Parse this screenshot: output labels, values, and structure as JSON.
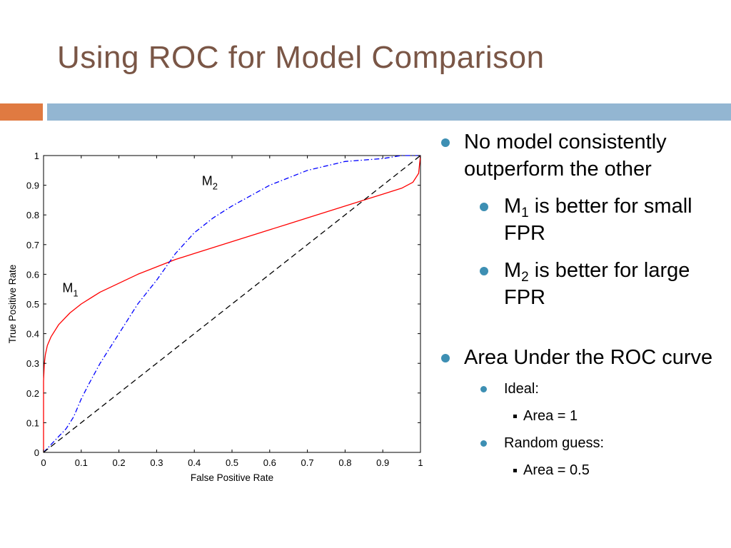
{
  "slide": {
    "title": "Using ROC for Model Comparison",
    "colors": {
      "title": "#7a5646",
      "orange_band": "#e07a41",
      "blue_band": "#93b6d2",
      "bullet": "#3d8fb3"
    }
  },
  "bullets": {
    "b1": "No model consistently outperform the other",
    "b1a_pre": "M",
    "b1a_sub": "1",
    "b1a_post": " is better for small FPR",
    "b1b_pre": "M",
    "b1b_sub": "2",
    "b1b_post": " is better for large FPR",
    "b2": "Area Under the ROC curve",
    "b2a": "Ideal:",
    "b2a1": "Area = 1",
    "b2b": "Random guess:",
    "b2b1": "Area = 0.5"
  },
  "chart_data": {
    "type": "line",
    "xlabel": "False Positive Rate",
    "ylabel": "True Positive Rate",
    "xlim": [
      0,
      1
    ],
    "ylim": [
      0,
      1
    ],
    "xticks": [
      "0",
      "0.1",
      "0.2",
      "0.3",
      "0.4",
      "0.5",
      "0.6",
      "0.7",
      "0.8",
      "0.9",
      "1"
    ],
    "yticks": [
      "0",
      "0.1",
      "0.2",
      "0.3",
      "0.4",
      "0.5",
      "0.6",
      "0.7",
      "0.8",
      "0.9",
      "1"
    ],
    "grid": false,
    "series": [
      {
        "name": "M1",
        "label_main": "M",
        "label_sub": "1",
        "label_at": [
          0.05,
          0.54
        ],
        "color": "#ff0000",
        "style": "solid",
        "x": [
          0,
          0,
          0.002,
          0.005,
          0.01,
          0.02,
          0.04,
          0.07,
          0.1,
          0.15,
          0.2,
          0.25,
          0.3,
          0.35,
          0.4,
          0.5,
          0.6,
          0.65,
          0.7,
          0.8,
          0.85,
          0.9,
          0.95,
          0.98,
          0.995,
          1
        ],
        "y": [
          0,
          0.24,
          0.3,
          0.33,
          0.36,
          0.39,
          0.43,
          0.47,
          0.5,
          0.54,
          0.57,
          0.6,
          0.625,
          0.65,
          0.67,
          0.71,
          0.75,
          0.77,
          0.79,
          0.83,
          0.85,
          0.87,
          0.89,
          0.91,
          0.94,
          1
        ]
      },
      {
        "name": "M2",
        "label_main": "M",
        "label_sub": "2",
        "label_at": [
          0.42,
          0.9
        ],
        "color": "#0000ff",
        "style": "dashdot",
        "x": [
          0,
          0.03,
          0.06,
          0.08,
          0.1,
          0.12,
          0.15,
          0.2,
          0.25,
          0.3,
          0.35,
          0.4,
          0.45,
          0.5,
          0.6,
          0.7,
          0.8,
          0.9,
          0.95,
          1
        ],
        "y": [
          0,
          0.04,
          0.08,
          0.12,
          0.18,
          0.23,
          0.3,
          0.4,
          0.5,
          0.58,
          0.67,
          0.74,
          0.79,
          0.83,
          0.9,
          0.95,
          0.98,
          0.99,
          1.0,
          1.0
        ]
      },
      {
        "x": [
          0,
          1
        ],
        "y": [
          0,
          1
        ],
        "color": "#000000",
        "style": "dashed"
      }
    ]
  }
}
